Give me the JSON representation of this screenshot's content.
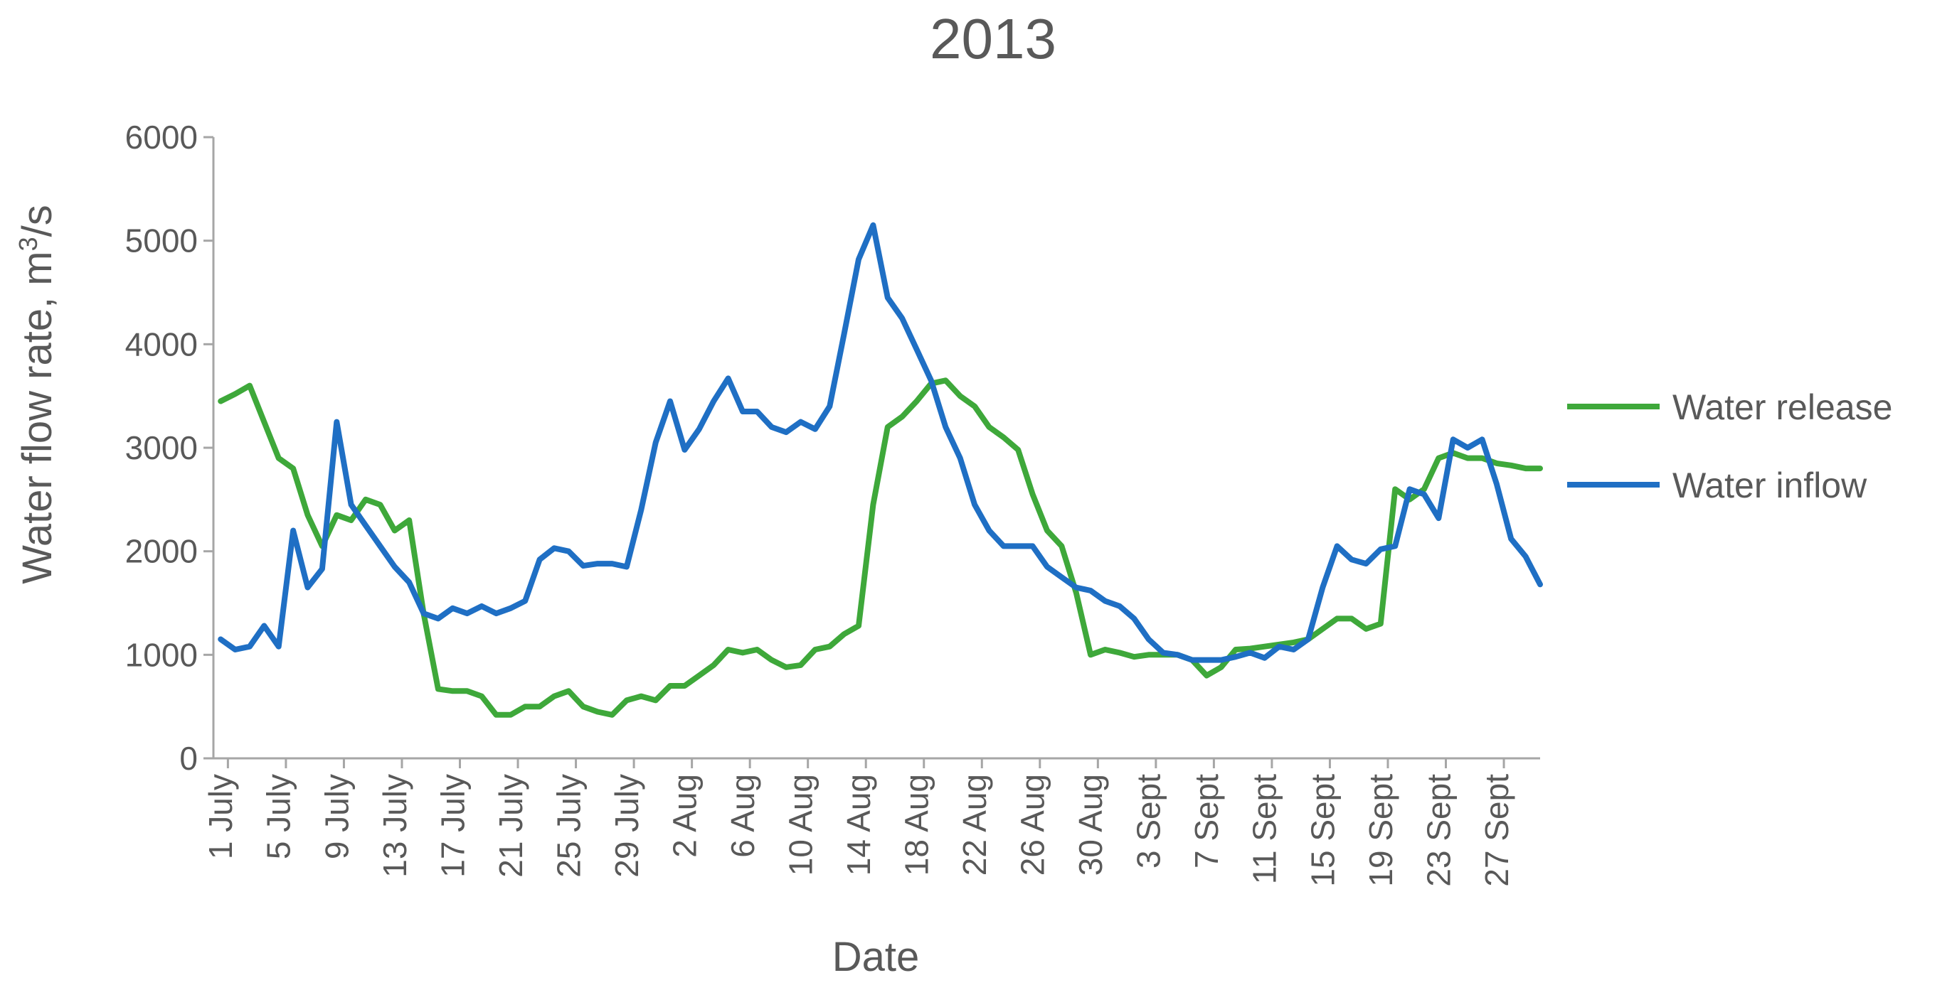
{
  "chart_data": {
    "type": "line",
    "title": "2013",
    "xlabel": "Date",
    "ylabel_main": "Water flow rate, m",
    "ylabel_sup": "3",
    "ylabel_tail": "/s",
    "ylim": [
      0,
      6000
    ],
    "yticks": [
      "0",
      "1000",
      "2000",
      "3000",
      "4000",
      "5000",
      "6000"
    ],
    "xtick_labels": [
      "1 July",
      "5 July",
      "9 July",
      "13 July",
      "17 July",
      "21 July",
      "25 July",
      "29 July",
      "2 Aug",
      "6 Aug",
      "10 Aug",
      "14 Aug",
      "18 Aug",
      "22 Aug",
      "26 Aug",
      "30 Aug",
      "3 Sept",
      "7 Sept",
      "11 Sept",
      "15 Sept",
      "19 Sept",
      "23 Sept",
      "27 Sept"
    ],
    "x_days": [
      "1 Jul",
      "2 Jul",
      "3 Jul",
      "4 Jul",
      "5 Jul",
      "6 Jul",
      "7 Jul",
      "8 Jul",
      "9 Jul",
      "10 Jul",
      "11 Jul",
      "12 Jul",
      "13 Jul",
      "14 Jul",
      "15 Jul",
      "16 Jul",
      "17 Jul",
      "18 Jul",
      "19 Jul",
      "20 Jul",
      "21 Jul",
      "22 Jul",
      "23 Jul",
      "24 Jul",
      "25 Jul",
      "26 Jul",
      "27 Jul",
      "28 Jul",
      "29 Jul",
      "30 Jul",
      "31 Jul",
      "1 Aug",
      "2 Aug",
      "3 Aug",
      "4 Aug",
      "5 Aug",
      "6 Aug",
      "7 Aug",
      "8 Aug",
      "9 Aug",
      "10 Aug",
      "11 Aug",
      "12 Aug",
      "13 Aug",
      "14 Aug",
      "15 Aug",
      "16 Aug",
      "17 Aug",
      "18 Aug",
      "19 Aug",
      "20 Aug",
      "21 Aug",
      "22 Aug",
      "23 Aug",
      "24 Aug",
      "25 Aug",
      "26 Aug",
      "27 Aug",
      "28 Aug",
      "29 Aug",
      "30 Aug",
      "31 Aug",
      "1 Sept",
      "2 Sept",
      "3 Sept",
      "4 Sept",
      "5 Sept",
      "6 Sept",
      "7 Sept",
      "8 Sept",
      "9 Sept",
      "10 Sept",
      "11 Sept",
      "12 Sept",
      "13 Sept",
      "14 Sept",
      "15 Sept",
      "16 Sept",
      "17 Sept",
      "18 Sept",
      "19 Sept",
      "20 Sept",
      "21 Sept",
      "22 Sept",
      "23 Sept",
      "24 Sept",
      "25 Sept",
      "26 Sept",
      "27 Sept",
      "28 Sept",
      "29 Sept",
      "30 Sept"
    ],
    "series": [
      {
        "name": "Water release",
        "color": "#3ea83a",
        "values": [
          3450,
          3520,
          3600,
          3250,
          2900,
          2800,
          2350,
          2050,
          2350,
          2300,
          2500,
          2450,
          2200,
          2300,
          1400,
          670,
          650,
          650,
          600,
          420,
          420,
          500,
          500,
          600,
          650,
          500,
          450,
          420,
          560,
          600,
          560,
          700,
          700,
          800,
          900,
          1050,
          1020,
          1050,
          950,
          880,
          900,
          1050,
          1080,
          1200,
          1280,
          2450,
          3200,
          3300,
          3450,
          3620,
          3650,
          3500,
          3400,
          3200,
          3100,
          2980,
          2550,
          2200,
          2050,
          1600,
          1000,
          1050,
          1020,
          980,
          1000,
          1000,
          1000,
          950,
          800,
          880,
          1050,
          1060,
          1080,
          1100,
          1120,
          1150,
          1250,
          1350,
          1350,
          1250,
          1300,
          2600,
          2500,
          2600,
          2900,
          2950,
          2900,
          2900,
          2850,
          2830,
          2800,
          2800
        ]
      },
      {
        "name": "Water inflow",
        "color": "#1f6fc4",
        "values": [
          1150,
          1050,
          1080,
          1280,
          1080,
          2200,
          1650,
          1830,
          3250,
          2450,
          2250,
          2050,
          1850,
          1700,
          1400,
          1350,
          1450,
          1400,
          1470,
          1400,
          1450,
          1520,
          1920,
          2030,
          2000,
          1860,
          1880,
          1880,
          1850,
          2400,
          3050,
          3450,
          2980,
          3180,
          3450,
          3670,
          3350,
          3350,
          3200,
          3150,
          3250,
          3180,
          3400,
          4100,
          4820,
          5150,
          4450,
          4250,
          3950,
          3650,
          3200,
          2900,
          2450,
          2200,
          2050,
          2050,
          2050,
          1850,
          1750,
          1650,
          1620,
          1520,
          1470,
          1350,
          1150,
          1020,
          1000,
          950,
          950,
          950,
          980,
          1020,
          970,
          1080,
          1050,
          1150,
          1650,
          2050,
          1920,
          1880,
          2020,
          2050,
          2600,
          2550,
          2320,
          3080,
          3000,
          3080,
          2650,
          2120,
          1950,
          1680
        ]
      }
    ],
    "legend_position": "right",
    "grid": false
  }
}
